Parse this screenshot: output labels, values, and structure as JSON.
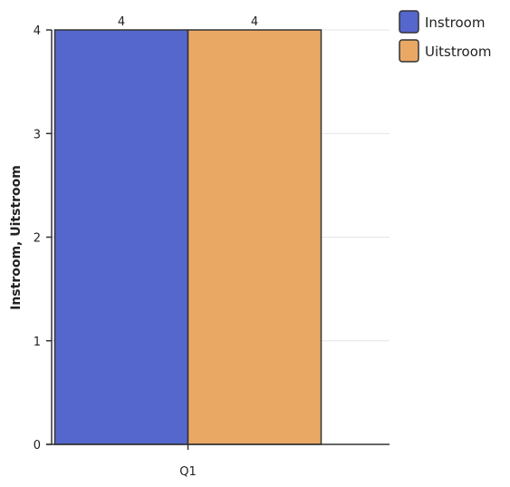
{
  "chart_data": {
    "type": "bar",
    "categories": [
      "Q1"
    ],
    "series": [
      {
        "name": "Instroom",
        "values": [
          4
        ],
        "color": "#5566cc"
      },
      {
        "name": "Uitstroom",
        "values": [
          4
        ],
        "color": "#e9a964"
      }
    ],
    "ylabel": "Instroom, Uitstroom",
    "ylim": [
      0,
      4
    ],
    "yticks": [
      0,
      1,
      2,
      3,
      4
    ],
    "data_labels": [
      "4",
      "4"
    ],
    "grid": true,
    "legend_placement": "top-right"
  }
}
